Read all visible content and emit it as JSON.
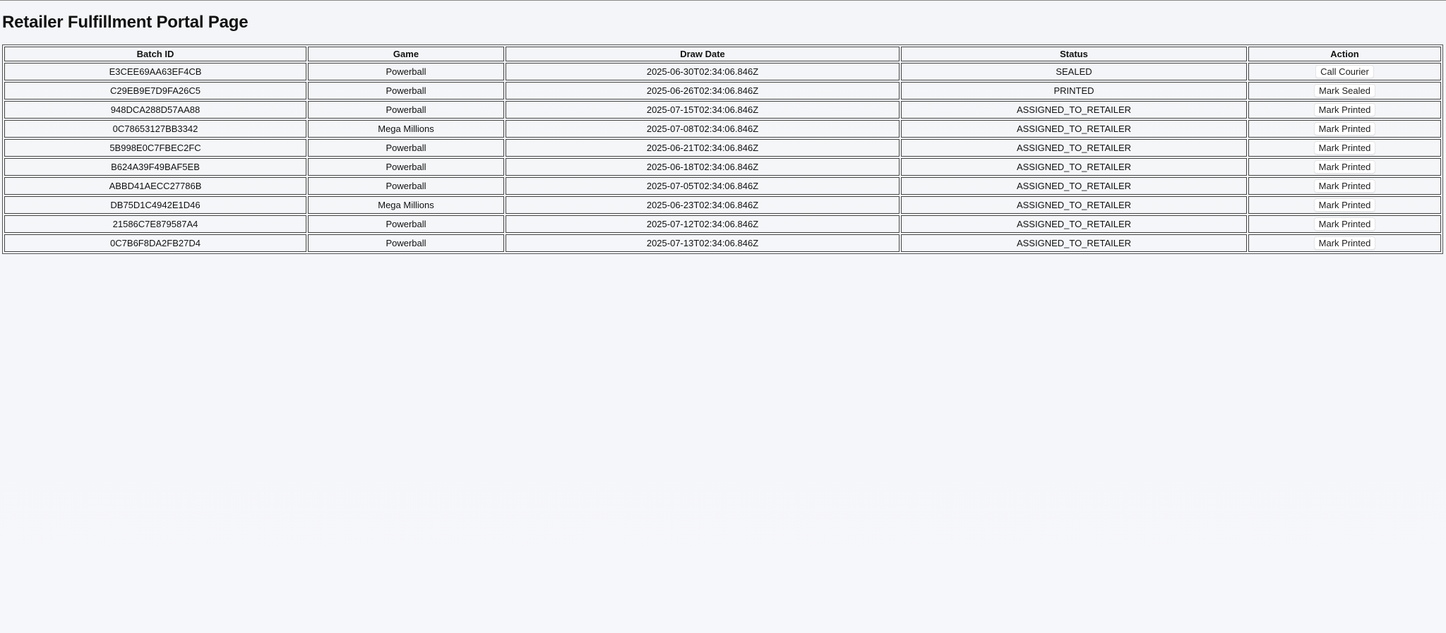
{
  "page": {
    "title": "Retailer Fulfillment Portal Page"
  },
  "table": {
    "headers": [
      "Batch ID",
      "Game",
      "Draw Date",
      "Status",
      "Action"
    ],
    "rows": [
      {
        "batch_id": "E3CEE69AA63EF4CB",
        "game": "Powerball",
        "draw_date": "2025-06-30T02:34:06.846Z",
        "status": "SEALED",
        "action": "Call Courier"
      },
      {
        "batch_id": "C29EB9E7D9FA26C5",
        "game": "Powerball",
        "draw_date": "2025-06-26T02:34:06.846Z",
        "status": "PRINTED",
        "action": "Mark Sealed"
      },
      {
        "batch_id": "948DCA288D57AA88",
        "game": "Powerball",
        "draw_date": "2025-07-15T02:34:06.846Z",
        "status": "ASSIGNED_TO_RETAILER",
        "action": "Mark Printed"
      },
      {
        "batch_id": "0C78653127BB3342",
        "game": "Mega Millions",
        "draw_date": "2025-07-08T02:34:06.846Z",
        "status": "ASSIGNED_TO_RETAILER",
        "action": "Mark Printed"
      },
      {
        "batch_id": "5B998E0C7FBEC2FC",
        "game": "Powerball",
        "draw_date": "2025-06-21T02:34:06.846Z",
        "status": "ASSIGNED_TO_RETAILER",
        "action": "Mark Printed"
      },
      {
        "batch_id": "B624A39F49BAF5EB",
        "game": "Powerball",
        "draw_date": "2025-06-18T02:34:06.846Z",
        "status": "ASSIGNED_TO_RETAILER",
        "action": "Mark Printed"
      },
      {
        "batch_id": "ABBD41AECC27786B",
        "game": "Powerball",
        "draw_date": "2025-07-05T02:34:06.846Z",
        "status": "ASSIGNED_TO_RETAILER",
        "action": "Mark Printed"
      },
      {
        "batch_id": "DB75D1C4942E1D46",
        "game": "Mega Millions",
        "draw_date": "2025-06-23T02:34:06.846Z",
        "status": "ASSIGNED_TO_RETAILER",
        "action": "Mark Printed"
      },
      {
        "batch_id": "21586C7E879587A4",
        "game": "Powerball",
        "draw_date": "2025-07-12T02:34:06.846Z",
        "status": "ASSIGNED_TO_RETAILER",
        "action": "Mark Printed"
      },
      {
        "batch_id": "0C7B6F8DA2FB27D4",
        "game": "Powerball",
        "draw_date": "2025-07-13T02:34:06.846Z",
        "status": "ASSIGNED_TO_RETAILER",
        "action": "Mark Printed"
      }
    ]
  }
}
